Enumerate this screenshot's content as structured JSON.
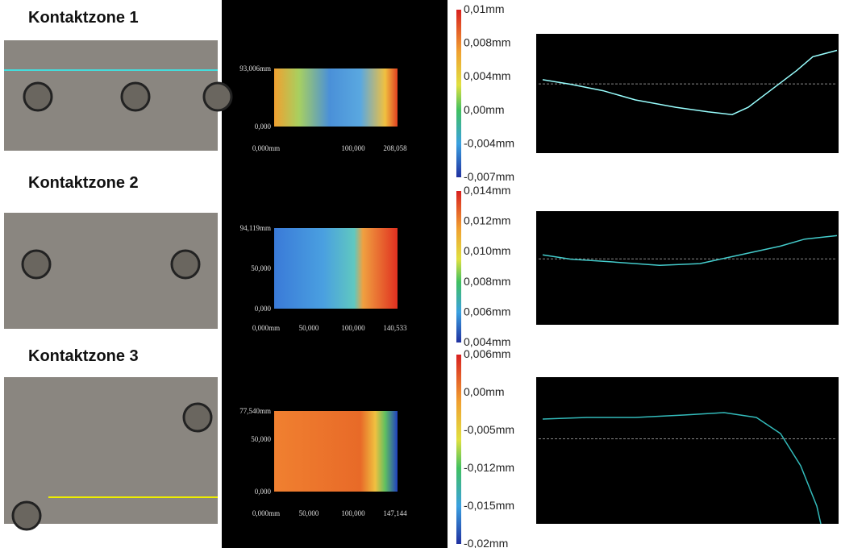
{
  "rows": [
    {
      "title": "Kontaktzone 1",
      "heatmap": {
        "y_labels": [
          "93,006mm",
          "0,000"
        ],
        "x_labels": [
          "0,000mm",
          "100,000",
          "208,058"
        ]
      },
      "colorbar": [
        "0,01mm",
        "0,008mm",
        "0,004mm",
        "0,00mm",
        "-0,004mm",
        "-0,007mm"
      ]
    },
    {
      "title": "Kontaktzone 2",
      "heatmap": {
        "y_labels": [
          "94,119mm",
          "50,000",
          "0,000"
        ],
        "x_labels": [
          "0,000mm",
          "50,000",
          "100,000",
          "140,533"
        ]
      },
      "colorbar": [
        "0,014mm",
        "0,012mm",
        "0,010mm",
        "0,008mm",
        "0,006mm",
        "0,004mm"
      ]
    },
    {
      "title": "Kontaktzone 3",
      "heatmap": {
        "y_labels": [
          "77,540mm",
          "50,000",
          "0,000"
        ],
        "x_labels": [
          "0,000mm",
          "50,000",
          "100,000",
          "147,144"
        ]
      },
      "colorbar": [
        "0,006mm",
        "0,00mm",
        "-0,005mm",
        "-0,012mm",
        "-0,015mm",
        "-0,02mm"
      ]
    }
  ]
}
